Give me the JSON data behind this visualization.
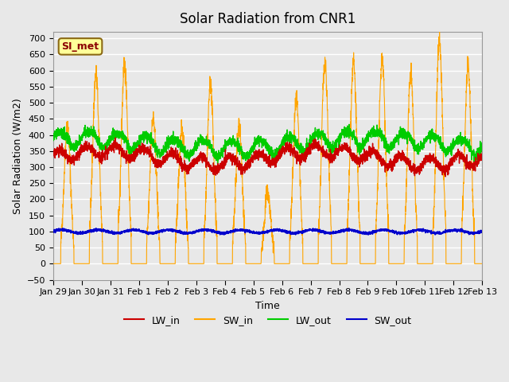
{
  "title": "Solar Radiation from CNR1",
  "xlabel": "Time",
  "ylabel": "Solar Radiation (W/m2)",
  "ylim": [
    -50,
    720
  ],
  "background_color": "#e8e8e8",
  "plot_bg_color": "#e8e8e8",
  "grid_color": "#ffffff",
  "legend_label": "SI_met",
  "legend_box_color": "#ffff99",
  "legend_box_edge": "#8B6914",
  "series_colors": {
    "LW_in": "#cc0000",
    "SW_in": "#FFA500",
    "LW_out": "#00cc00",
    "SW_out": "#0000cc"
  },
  "xtick_labels": [
    "Jan 29",
    "Jan 30",
    "Jan 31",
    "Feb 1",
    "Feb 2",
    "Feb 3",
    "Feb 4",
    "Feb 5",
    "Feb 6",
    "Feb 7",
    "Feb 8",
    "Feb 9",
    "Feb 10",
    "Feb 11",
    "Feb 12",
    "Feb 13"
  ],
  "n_points": 3360,
  "days": 15,
  "start_day": 0
}
